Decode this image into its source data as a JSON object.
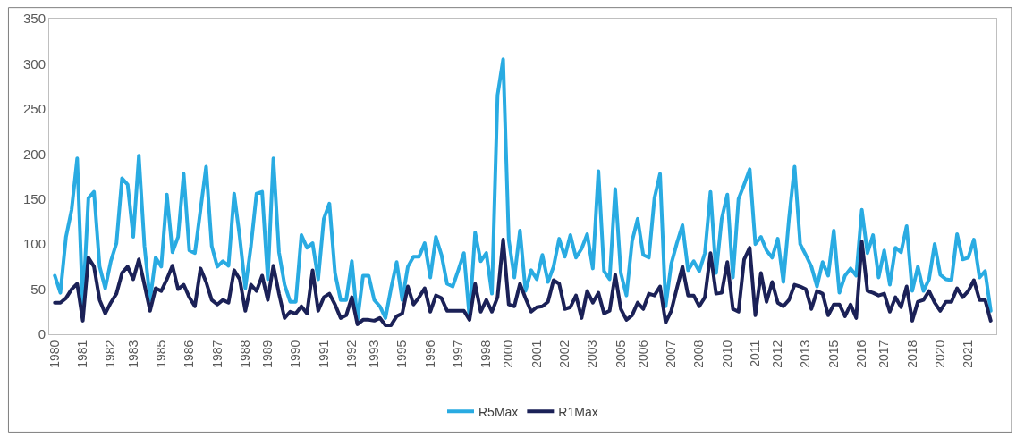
{
  "chart_data": {
    "type": "line",
    "categories": [
      "1980",
      null,
      null,
      null,
      null,
      "1981",
      null,
      null,
      null,
      null,
      "1982",
      null,
      null,
      null,
      "1983",
      null,
      null,
      null,
      null,
      "1985",
      null,
      null,
      null,
      null,
      "1986",
      null,
      null,
      null,
      null,
      "1987",
      null,
      null,
      null,
      null,
      "1988",
      null,
      null,
      null,
      "1989",
      null,
      null,
      null,
      null,
      "1990",
      null,
      null,
      null,
      null,
      "1991",
      null,
      null,
      null,
      null,
      "1992",
      null,
      null,
      null,
      "1993",
      null,
      null,
      null,
      null,
      "1995",
      null,
      null,
      null,
      null,
      "1996",
      null,
      null,
      null,
      null,
      "1997",
      null,
      null,
      null,
      null,
      "1998",
      null,
      null,
      null,
      "2000",
      null,
      null,
      null,
      null,
      "2001",
      null,
      null,
      null,
      null,
      "2002",
      null,
      null,
      null,
      null,
      "2003",
      null,
      null,
      null,
      null,
      "2005",
      null,
      null,
      null,
      "2006",
      null,
      null,
      null,
      null,
      "2007",
      null,
      null,
      null,
      null,
      "2008",
      null,
      null,
      null,
      null,
      "2010",
      null,
      null,
      null,
      null,
      "2011",
      null,
      null,
      null,
      "2012",
      null,
      null,
      null,
      null,
      "2013",
      null,
      null,
      null,
      null,
      "2015",
      null,
      null,
      null,
      null,
      "2016",
      null,
      null,
      null,
      "2017",
      null,
      null,
      null,
      null,
      "2018",
      null,
      null,
      null,
      null,
      "2020",
      null,
      null,
      null,
      null,
      "2021",
      null,
      null,
      null,
      null
    ],
    "series": [
      {
        "name": "R5Max",
        "color": "#29abe2",
        "values": [
          65,
          46,
          108,
          138,
          195,
          30,
          151,
          158,
          75,
          51,
          81,
          101,
          173,
          166,
          108,
          198,
          98,
          38,
          85,
          75,
          155,
          91,
          108,
          178,
          93,
          90,
          138,
          186,
          98,
          75,
          81,
          76,
          156,
          108,
          51,
          98,
          156,
          158,
          61,
          195,
          91,
          55,
          36,
          36,
          110,
          96,
          101,
          61,
          128,
          145,
          68,
          38,
          38,
          81,
          15,
          65,
          65,
          38,
          31,
          18,
          51,
          80,
          38,
          75,
          86,
          86,
          101,
          63,
          108,
          88,
          56,
          53,
          71,
          90,
          18,
          113,
          81,
          90,
          45,
          265,
          305,
          105,
          63,
          115,
          48,
          71,
          61,
          88,
          58,
          75,
          106,
          86,
          110,
          85,
          95,
          111,
          73,
          181,
          70,
          61,
          161,
          68,
          43,
          103,
          128,
          88,
          85,
          151,
          178,
          31,
          78,
          101,
          121,
          71,
          81,
          70,
          90,
          158,
          68,
          128,
          155,
          63,
          150,
          166,
          183,
          100,
          108,
          93,
          85,
          106,
          58,
          128,
          186,
          100,
          88,
          75,
          53,
          80,
          65,
          115,
          46,
          65,
          73,
          65,
          138,
          90,
          110,
          63,
          93,
          55,
          96,
          91,
          120,
          48,
          75,
          48,
          61,
          100,
          66,
          61,
          60,
          111,
          83,
          85,
          105,
          63,
          70,
          26
        ]
      },
      {
        "name": "R1Max",
        "color": "#1b2157",
        "values": [
          35,
          35,
          40,
          50,
          56,
          15,
          85,
          75,
          38,
          23,
          35,
          45,
          68,
          75,
          61,
          83,
          55,
          26,
          51,
          48,
          61,
          76,
          50,
          55,
          41,
          31,
          73,
          58,
          38,
          33,
          38,
          35,
          71,
          61,
          26,
          55,
          48,
          65,
          38,
          76,
          45,
          18,
          25,
          23,
          31,
          23,
          71,
          26,
          41,
          45,
          33,
          18,
          21,
          41,
          11,
          16,
          16,
          15,
          18,
          10,
          10,
          20,
          23,
          53,
          33,
          41,
          51,
          25,
          43,
          40,
          26,
          26,
          26,
          26,
          16,
          56,
          25,
          38,
          25,
          41,
          105,
          33,
          31,
          56,
          40,
          25,
          30,
          31,
          36,
          60,
          56,
          28,
          30,
          43,
          18,
          48,
          35,
          46,
          23,
          26,
          66,
          28,
          16,
          21,
          35,
          28,
          45,
          43,
          53,
          13,
          26,
          51,
          75,
          43,
          43,
          31,
          41,
          90,
          45,
          46,
          80,
          28,
          25,
          83,
          96,
          21,
          68,
          36,
          58,
          35,
          31,
          38,
          55,
          53,
          50,
          28,
          48,
          45,
          21,
          33,
          33,
          20,
          33,
          18,
          103,
          48,
          46,
          43,
          45,
          25,
          41,
          30,
          53,
          15,
          36,
          38,
          48,
          35,
          26,
          36,
          36,
          51,
          41,
          48,
          60,
          38,
          38,
          15
        ]
      }
    ],
    "ylim": [
      0,
      350
    ],
    "yticks": [
      0,
      50,
      100,
      150,
      200,
      250,
      300,
      350
    ],
    "grid": false,
    "legend": "bottom",
    "marker": "none",
    "line_style": "solid"
  }
}
